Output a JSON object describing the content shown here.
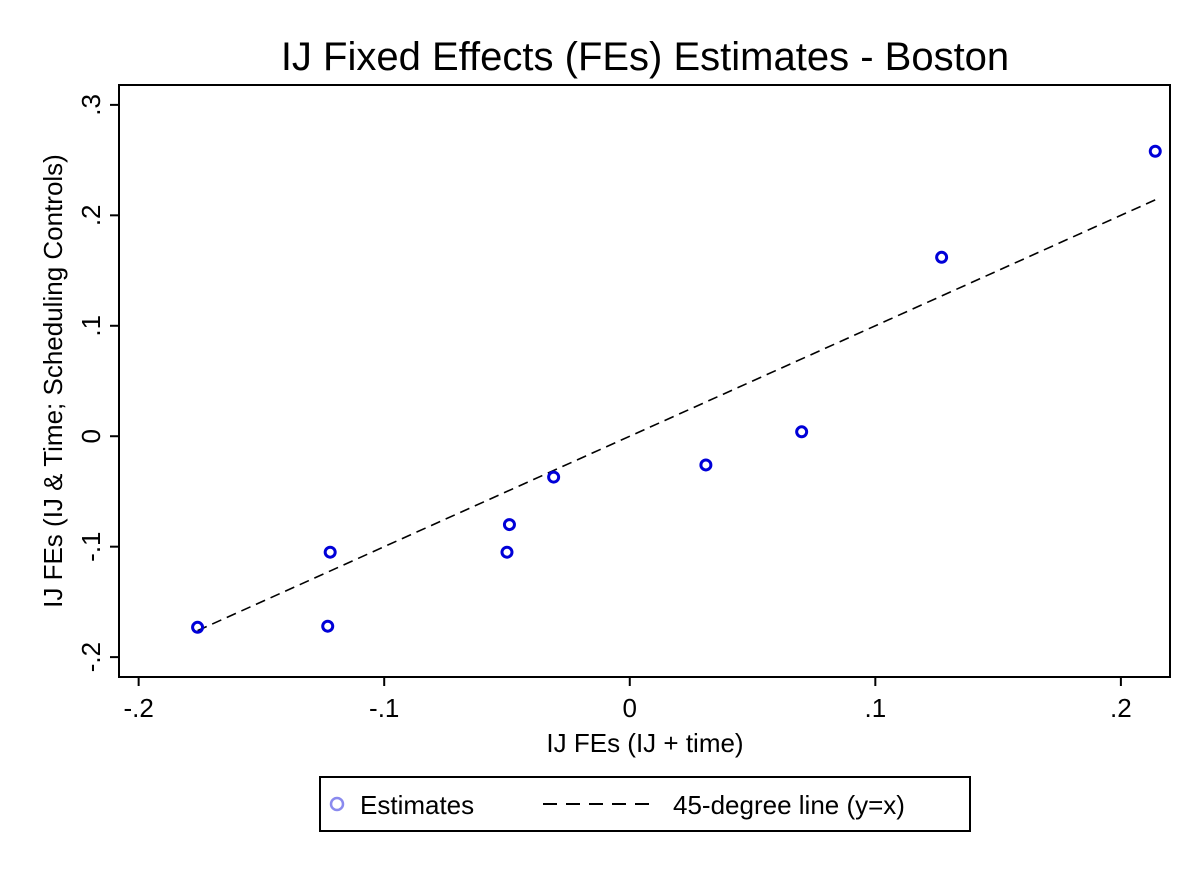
{
  "chart_data": {
    "type": "scatter",
    "title": "IJ Fixed Effects (FEs) Estimates - Boston",
    "xlabel": "IJ FEs (IJ + time)",
    "ylabel": "IJ FEs (IJ & Time; Scheduling Controls)",
    "xlim": [
      -0.208,
      0.22
    ],
    "ylim": [
      -0.218,
      0.318
    ],
    "xticks": [
      -0.2,
      -0.1,
      0,
      0.1,
      0.2
    ],
    "xtick_labels": [
      "-.2",
      "-.1",
      "0",
      ".1",
      ".2"
    ],
    "yticks": [
      -0.2,
      -0.1,
      0,
      0.1,
      0.2,
      0.3
    ],
    "ytick_labels": [
      "-.2",
      "-.1",
      "0",
      ".1",
      ".2",
      ".3"
    ],
    "grid": false,
    "legend_position": "bottom",
    "series": [
      {
        "name": "Estimates",
        "kind": "scatter",
        "color": "#0000d8",
        "points": [
          {
            "x": -0.176,
            "y": -0.173
          },
          {
            "x": -0.123,
            "y": -0.172
          },
          {
            "x": -0.122,
            "y": -0.105
          },
          {
            "x": -0.05,
            "y": -0.105
          },
          {
            "x": -0.049,
            "y": -0.08
          },
          {
            "x": -0.031,
            "y": -0.037
          },
          {
            "x": 0.031,
            "y": -0.026
          },
          {
            "x": 0.07,
            "y": 0.004
          },
          {
            "x": 0.127,
            "y": 0.162
          },
          {
            "x": 0.214,
            "y": 0.258
          }
        ]
      },
      {
        "name": "45-degree line (y=x)",
        "kind": "line",
        "style": "dashed",
        "color": "#000000",
        "x": [
          -0.176,
          0.214
        ],
        "y": [
          -0.176,
          0.214
        ]
      }
    ]
  }
}
